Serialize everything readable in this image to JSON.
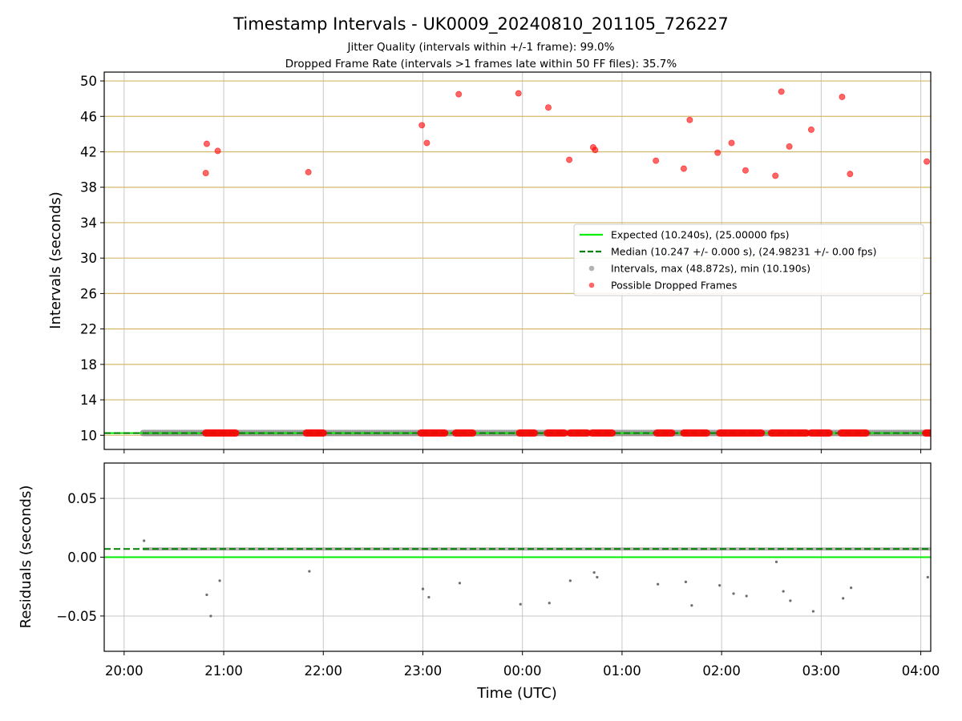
{
  "chart_data": {
    "title": "Timestamp Intervals - UK0009_20240810_201105_726227",
    "subtitle_lines": [
      "Jitter Quality (intervals within +/-1 frame): 99.0%",
      "Dropped Frame Rate (intervals >1 frames late within 50 FF files): 35.7%"
    ],
    "xlabel": "Time (UTC)",
    "x_unit": "hours from 20:00 UTC",
    "x_range": [
      -0.2,
      8.1
    ],
    "x_ticks": [
      {
        "label": "20:00",
        "value": 0
      },
      {
        "label": "21:00",
        "value": 1
      },
      {
        "label": "22:00",
        "value": 2
      },
      {
        "label": "23:00",
        "value": 3
      },
      {
        "label": "00:00",
        "value": 4
      },
      {
        "label": "01:00",
        "value": 5
      },
      {
        "label": "02:00",
        "value": 6
      },
      {
        "label": "03:00",
        "value": 7
      },
      {
        "label": "04:00",
        "value": 8
      }
    ],
    "panels": [
      {
        "type": "scatter",
        "ylabel": "Intervals (seconds)",
        "ylim": [
          8.4,
          51.0
        ],
        "yticks": [
          10,
          14,
          18,
          22,
          26,
          30,
          34,
          38,
          42,
          46,
          50
        ],
        "grid": true,
        "legend_position": "center-right",
        "legend": [
          {
            "label": "Expected (10.240s), (25.00000 fps)",
            "marker": "line",
            "color": "#00ee00",
            "dash": "solid"
          },
          {
            "label": "Median (10.247 +/- 0.000 s), (24.98231 +/- 0.00 fps)",
            "marker": "line",
            "color": "#008000",
            "dash": "dashed"
          },
          {
            "label": "Intervals, max (48.872s), min (10.190s)",
            "marker": "dot",
            "color": "#808080"
          },
          {
            "label": "Possible Dropped Frames",
            "marker": "dot",
            "color": "#ff0000"
          }
        ],
        "lines": [
          {
            "name": "Expected",
            "y": 10.24,
            "color": "#00ee00",
            "dash": "solid"
          },
          {
            "name": "Median",
            "y": 10.247,
            "color": "#008000",
            "dash": "dashed"
          }
        ],
        "intervals_series": {
          "x_start": 0.19,
          "x_end": 8.1,
          "y": 10.25,
          "color": "#808080"
        },
        "dropped_near_expected_ranges": [
          [
            0.82,
            1.12
          ],
          [
            1.83,
            2.0
          ],
          [
            2.98,
            3.22
          ],
          [
            3.33,
            3.5
          ],
          [
            3.97,
            4.12
          ],
          [
            4.25,
            4.42
          ],
          [
            4.48,
            4.65
          ],
          [
            4.7,
            4.9
          ],
          [
            5.35,
            5.5
          ],
          [
            5.62,
            5.85
          ],
          [
            5.98,
            6.4
          ],
          [
            6.5,
            6.85
          ],
          [
            6.9,
            7.08
          ],
          [
            7.2,
            7.45
          ],
          [
            8.05,
            8.1
          ]
        ],
        "dropped_frames": [
          {
            "x": 0.82,
            "y": 39.6
          },
          {
            "x": 0.83,
            "y": 42.9
          },
          {
            "x": 0.94,
            "y": 42.1
          },
          {
            "x": 1.85,
            "y": 39.7
          },
          {
            "x": 2.99,
            "y": 45.0
          },
          {
            "x": 3.04,
            "y": 43.0
          },
          {
            "x": 3.36,
            "y": 48.5
          },
          {
            "x": 3.96,
            "y": 48.6
          },
          {
            "x": 4.26,
            "y": 47.0
          },
          {
            "x": 4.47,
            "y": 41.1
          },
          {
            "x": 4.71,
            "y": 42.5
          },
          {
            "x": 4.73,
            "y": 42.2
          },
          {
            "x": 5.34,
            "y": 41.0
          },
          {
            "x": 5.62,
            "y": 40.1
          },
          {
            "x": 5.68,
            "y": 45.6
          },
          {
            "x": 5.96,
            "y": 41.9
          },
          {
            "x": 6.1,
            "y": 43.0
          },
          {
            "x": 6.24,
            "y": 39.9
          },
          {
            "x": 6.54,
            "y": 39.3
          },
          {
            "x": 6.6,
            "y": 48.8
          },
          {
            "x": 6.68,
            "y": 42.6
          },
          {
            "x": 6.9,
            "y": 44.5
          },
          {
            "x": 7.21,
            "y": 48.2
          },
          {
            "x": 7.29,
            "y": 39.5
          },
          {
            "x": 8.06,
            "y": 40.9
          }
        ]
      },
      {
        "type": "scatter",
        "ylabel": "Residuals (seconds)",
        "ylim": [
          -0.08,
          0.08
        ],
        "yticks": [
          {
            "label": "0.05",
            "value": 0.05
          },
          {
            "label": "0.00",
            "value": 0.0
          },
          {
            "label": "−0.05",
            "value": -0.05
          }
        ],
        "grid": true,
        "lines": [
          {
            "name": "Expected",
            "y": 0.0,
            "color": "#00ee00",
            "dash": "solid"
          },
          {
            "name": "Median",
            "y": 0.007,
            "color": "#008000",
            "dash": "dashed"
          }
        ],
        "residual_band": {
          "x_start": 0.19,
          "x_end": 8.1,
          "y": 0.007,
          "color": "#808080"
        },
        "residuals": [
          {
            "x": 0.2,
            "y": 0.014
          },
          {
            "x": 0.83,
            "y": -0.032
          },
          {
            "x": 0.87,
            "y": -0.05
          },
          {
            "x": 0.96,
            "y": -0.02
          },
          {
            "x": 1.86,
            "y": -0.012
          },
          {
            "x": 3.0,
            "y": -0.027
          },
          {
            "x": 3.06,
            "y": -0.034
          },
          {
            "x": 3.37,
            "y": -0.022
          },
          {
            "x": 3.98,
            "y": -0.04
          },
          {
            "x": 4.27,
            "y": -0.039
          },
          {
            "x": 4.48,
            "y": -0.02
          },
          {
            "x": 4.72,
            "y": -0.013
          },
          {
            "x": 4.75,
            "y": -0.017
          },
          {
            "x": 5.36,
            "y": -0.023
          },
          {
            "x": 5.64,
            "y": -0.021
          },
          {
            "x": 5.7,
            "y": -0.041
          },
          {
            "x": 5.98,
            "y": -0.024
          },
          {
            "x": 6.12,
            "y": -0.031
          },
          {
            "x": 6.25,
            "y": -0.033
          },
          {
            "x": 6.55,
            "y": -0.004
          },
          {
            "x": 6.62,
            "y": -0.029
          },
          {
            "x": 6.69,
            "y": -0.037
          },
          {
            "x": 6.92,
            "y": -0.046
          },
          {
            "x": 7.22,
            "y": -0.035
          },
          {
            "x": 7.3,
            "y": -0.026
          },
          {
            "x": 8.07,
            "y": -0.017
          }
        ]
      }
    ]
  }
}
